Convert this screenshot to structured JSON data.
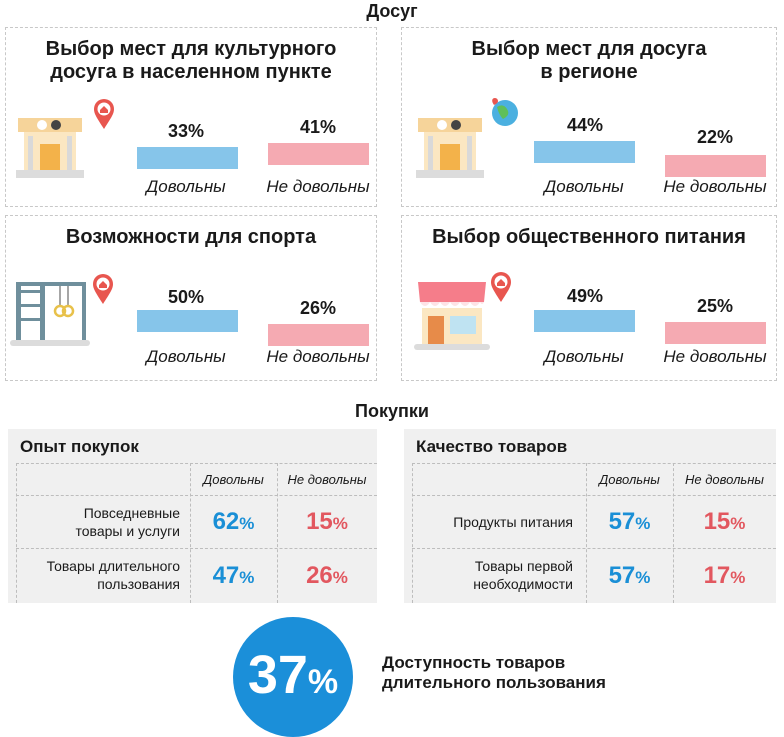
{
  "leisure": {
    "title": "Досуг",
    "satisfied_label": "Довольны",
    "dissatisfied_label": "Не довольны",
    "cards": [
      {
        "title": "Выбор мест для культурного\nдосуга в населенном пункте",
        "satisfied": "33%",
        "dissatisfied": "41%",
        "satisfied_value": 33,
        "dissatisfied_value": 41,
        "pin_icon": "home-pin-icon",
        "picture_icon": "theatre-icon"
      },
      {
        "title": "Выбор мест для досуга\nв регионе",
        "satisfied": "44%",
        "dissatisfied": "22%",
        "satisfied_value": 44,
        "dissatisfied_value": 22,
        "pin_icon": "globe-pin-icon",
        "picture_icon": "theatre-icon"
      },
      {
        "title": "Возможности для спорта",
        "satisfied": "50%",
        "dissatisfied": "26%",
        "satisfied_value": 50,
        "dissatisfied_value": 26,
        "pin_icon": "home-pin-icon",
        "picture_icon": "gym-bars-icon"
      },
      {
        "title": "Выбор общественного питания",
        "satisfied": "49%",
        "dissatisfied": "25%",
        "satisfied_value": 49,
        "dissatisfied_value": 25,
        "pin_icon": "home-pin-icon",
        "picture_icon": "cafe-icon"
      }
    ]
  },
  "shopping": {
    "title": "Покупки",
    "col_satisfied": "Довольны",
    "col_dissatisfied": "Не довольны",
    "tables": [
      {
        "title": "Опыт покупок",
        "rows": [
          {
            "label": "Повседневные\nтовары и услуги",
            "satisfied": "62",
            "dissatisfied": "15"
          },
          {
            "label": "Товары длительного\nпользования",
            "satisfied": "47",
            "dissatisfied": "26"
          }
        ]
      },
      {
        "title": "Качество товаров",
        "rows": [
          {
            "label": "Продукты питания",
            "satisfied": "57",
            "dissatisfied": "15"
          },
          {
            "label": "Товары первой\nнеобходимости",
            "satisfied": "57",
            "dissatisfied": "17"
          }
        ]
      }
    ],
    "percent_sign": "%"
  },
  "availability": {
    "value": "37",
    "percent_sign": "%",
    "label": "Доступность товаров\nдлительного пользования"
  },
  "colors": {
    "satisfied_bar": "#86c5ea",
    "dissatisfied_bar": "#f5aab2",
    "satisfied_text": "#1a8fd6",
    "dissatisfied_text": "#e2575f",
    "circle": "#1b8fd9"
  }
}
